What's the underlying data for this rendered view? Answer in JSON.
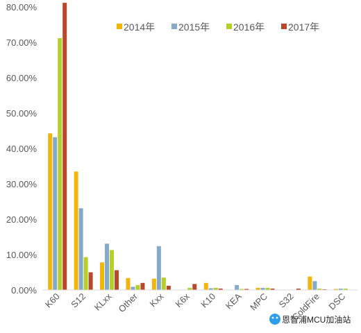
{
  "chart_data": {
    "type": "bar",
    "title": "",
    "xlabel": "",
    "ylabel": "",
    "ylim": [
      0,
      0.82
    ],
    "y_ticks": [
      "0.00%",
      "10.00%",
      "20.00%",
      "30.00%",
      "40.00%",
      "50.00%",
      "60.00%",
      "70.00%",
      "80.00%"
    ],
    "y_tick_values": [
      0,
      0.1,
      0.2,
      0.3,
      0.4,
      0.5,
      0.6,
      0.7,
      0.8
    ],
    "grid": false,
    "legend_position": "top-right",
    "categories": [
      "K60",
      "S12",
      "KLxx",
      "Other",
      "Kxx",
      "K6x",
      "K10",
      "KEA",
      "MPC",
      "S32",
      "ColdFire",
      "DSC"
    ],
    "series": [
      {
        "name": "2014年",
        "color": "#f2b50c",
        "values": [
          0.443,
          0.335,
          0.078,
          0.034,
          0.032,
          0.0,
          0.02,
          0.0,
          0.006,
          0.0,
          0.038,
          0.003
        ]
      },
      {
        "name": "2015年",
        "color": "#86a9c9",
        "values": [
          0.432,
          0.231,
          0.131,
          0.009,
          0.124,
          0.0,
          0.005,
          0.014,
          0.006,
          0.0,
          0.025,
          0.004
        ]
      },
      {
        "name": "2016年",
        "color": "#b5cf2b",
        "values": [
          0.712,
          0.093,
          0.113,
          0.014,
          0.035,
          0.006,
          0.006,
          0.003,
          0.006,
          0.0,
          0.004,
          0.004
        ]
      },
      {
        "name": "2017年",
        "color": "#b8482d",
        "values": [
          0.812,
          0.05,
          0.056,
          0.02,
          0.012,
          0.017,
          0.004,
          0.003,
          0.004,
          0.004,
          0.002,
          0.0
        ]
      }
    ]
  },
  "watermark": {
    "text": "恩智浦MCU加油站",
    "icon": "wechat-bubble-icon"
  }
}
